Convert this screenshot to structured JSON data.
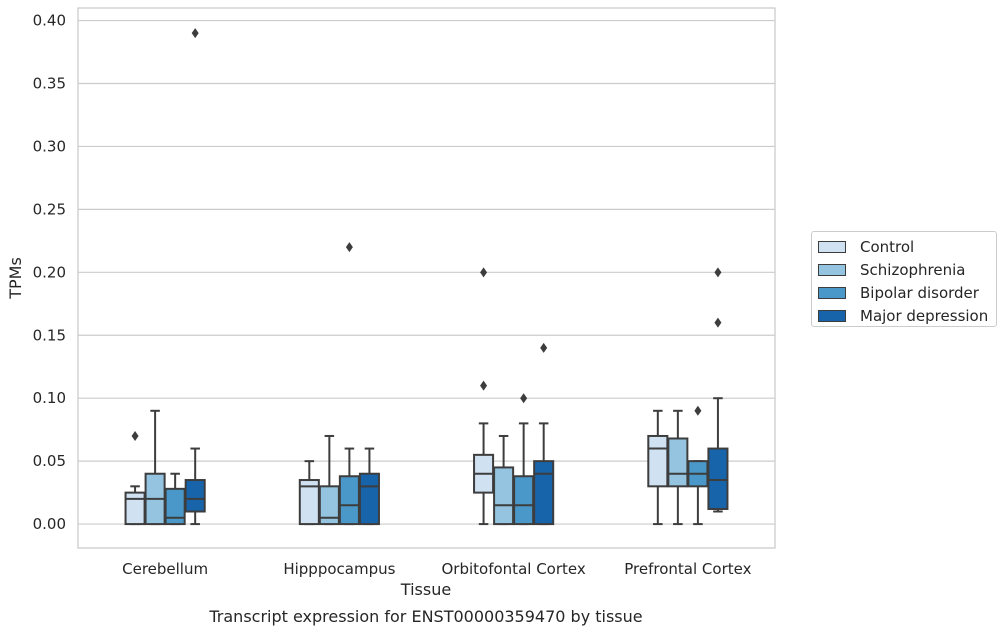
{
  "chart_data": {
    "type": "box",
    "ylabel": "TPMs",
    "xlabel": "Tissue",
    "caption": "Transcript expression for ENST00000359470 by tissue",
    "ylim": [
      -0.019,
      0.41
    ],
    "yticks": [
      0.0,
      0.05,
      0.1,
      0.15,
      0.2,
      0.25,
      0.3,
      0.35,
      0.4
    ],
    "ytick_labels": [
      "0.00",
      "0.05",
      "0.10",
      "0.15",
      "0.20",
      "0.25",
      "0.30",
      "0.35",
      "0.40"
    ],
    "grid": "horizontal",
    "legend_position": "center-right",
    "categories": [
      "Cerebellum",
      "Hipppocampus",
      "Orbitofontal Cortex",
      "Prefrontal Cortex"
    ],
    "series": [
      {
        "name": "Control",
        "color": "#d0e1f2",
        "boxes": [
          {
            "q1": 0.0,
            "median": 0.02,
            "q3": 0.025,
            "whisker_low": 0.0,
            "whisker_high": 0.03,
            "outliers": [
              0.07
            ]
          },
          {
            "q1": 0.0,
            "median": 0.03,
            "q3": 0.035,
            "whisker_low": 0.0,
            "whisker_high": 0.05,
            "outliers": []
          },
          {
            "q1": 0.025,
            "median": 0.04,
            "q3": 0.055,
            "whisker_low": 0.0,
            "whisker_high": 0.08,
            "outliers": [
              0.11,
              0.2
            ]
          },
          {
            "q1": 0.03,
            "median": 0.06,
            "q3": 0.07,
            "whisker_low": 0.0,
            "whisker_high": 0.09,
            "outliers": []
          }
        ]
      },
      {
        "name": "Schizophrenia",
        "color": "#94c4df",
        "boxes": [
          {
            "q1": 0.0,
            "median": 0.02,
            "q3": 0.04,
            "whisker_low": 0.0,
            "whisker_high": 0.09,
            "outliers": []
          },
          {
            "q1": 0.0,
            "median": 0.005,
            "q3": 0.03,
            "whisker_low": 0.0,
            "whisker_high": 0.07,
            "outliers": []
          },
          {
            "q1": 0.0,
            "median": 0.015,
            "q3": 0.045,
            "whisker_low": 0.0,
            "whisker_high": 0.07,
            "outliers": []
          },
          {
            "q1": 0.03,
            "median": 0.04,
            "q3": 0.068,
            "whisker_low": 0.0,
            "whisker_high": 0.09,
            "outliers": []
          }
        ]
      },
      {
        "name": "Bipolar disorder",
        "color": "#4a98c9",
        "boxes": [
          {
            "q1": 0.0,
            "median": 0.005,
            "q3": 0.028,
            "whisker_low": 0.0,
            "whisker_high": 0.04,
            "outliers": []
          },
          {
            "q1": 0.0,
            "median": 0.015,
            "q3": 0.038,
            "whisker_low": 0.0,
            "whisker_high": 0.06,
            "outliers": [
              0.22
            ]
          },
          {
            "q1": 0.0,
            "median": 0.015,
            "q3": 0.038,
            "whisker_low": 0.0,
            "whisker_high": 0.08,
            "outliers": [
              0.1
            ]
          },
          {
            "q1": 0.03,
            "median": 0.04,
            "q3": 0.05,
            "whisker_low": 0.0,
            "whisker_high": 0.05,
            "outliers": [
              0.09
            ]
          }
        ]
      },
      {
        "name": "Major depression",
        "color": "#1764ab",
        "boxes": [
          {
            "q1": 0.01,
            "median": 0.02,
            "q3": 0.035,
            "whisker_low": 0.0,
            "whisker_high": 0.06,
            "outliers": [
              0.39
            ]
          },
          {
            "q1": 0.0,
            "median": 0.03,
            "q3": 0.04,
            "whisker_low": 0.0,
            "whisker_high": 0.06,
            "outliers": []
          },
          {
            "q1": 0.0,
            "median": 0.04,
            "q3": 0.05,
            "whisker_low": 0.0,
            "whisker_high": 0.08,
            "outliers": [
              0.14
            ]
          },
          {
            "q1": 0.012,
            "median": 0.035,
            "q3": 0.06,
            "whisker_low": 0.01,
            "whisker_high": 0.1,
            "outliers": [
              0.16,
              0.2
            ]
          }
        ]
      }
    ]
  }
}
